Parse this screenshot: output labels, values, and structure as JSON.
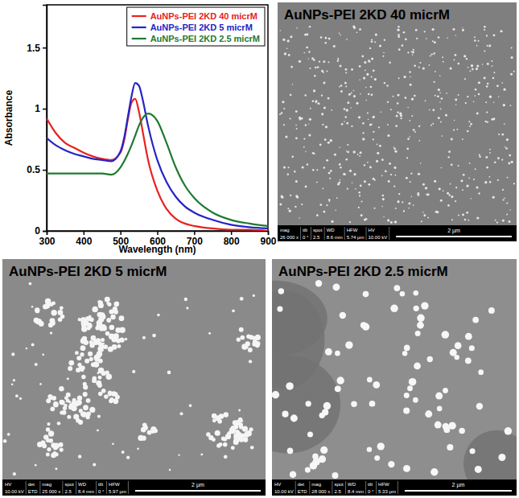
{
  "chart_data": {
    "type": "line",
    "xlabel": "Wavelength (nm)",
    "ylabel": "Absorbance",
    "x": [
      300,
      325,
      350,
      375,
      400,
      425,
      450,
      475,
      500,
      510,
      520,
      530,
      540,
      550,
      560,
      575,
      600,
      625,
      650,
      675,
      700,
      750,
      800,
      850,
      900
    ],
    "series": [
      {
        "name": "AuNPs-PEI 2KD 40 micrM",
        "color": "#e8231f",
        "values": [
          0.92,
          0.8,
          0.72,
          0.68,
          0.64,
          0.61,
          0.59,
          0.58,
          0.64,
          0.74,
          0.91,
          1.05,
          1.08,
          0.98,
          0.82,
          0.58,
          0.33,
          0.18,
          0.1,
          0.06,
          0.04,
          0.02,
          0.01,
          0.01,
          0.0
        ]
      },
      {
        "name": "AuNPs-PEI 2KD 5 micrM",
        "color": "#2424c8",
        "values": [
          0.76,
          0.7,
          0.66,
          0.63,
          0.61,
          0.59,
          0.58,
          0.57,
          0.65,
          0.76,
          0.93,
          1.1,
          1.21,
          1.19,
          1.08,
          0.86,
          0.58,
          0.4,
          0.28,
          0.2,
          0.15,
          0.09,
          0.05,
          0.03,
          0.02
        ]
      },
      {
        "name": "AuNPs-PEI 2KD 2.5 micrM",
        "color": "#1e7a30",
        "values": [
          0.47,
          0.47,
          0.47,
          0.47,
          0.47,
          0.47,
          0.47,
          0.46,
          0.52,
          0.57,
          0.63,
          0.7,
          0.78,
          0.86,
          0.92,
          0.96,
          0.9,
          0.72,
          0.52,
          0.37,
          0.27,
          0.15,
          0.09,
          0.06,
          0.04
        ]
      }
    ],
    "xlim": [
      300,
      900
    ],
    "ylim": [
      0,
      1.85
    ],
    "xticks": [
      300,
      400,
      500,
      600,
      700,
      800,
      900
    ],
    "yticks": [
      0,
      0.5,
      1,
      1.5
    ],
    "legend": "upper right"
  },
  "images": [
    {
      "title": "AuNPs-PEI 2KD 40 micrM",
      "footer_fields": [
        "mag",
        "tilt",
        "spot",
        "WD",
        "HFW",
        "HV"
      ],
      "footer_values": [
        "26 000 x",
        "0 °",
        "2.5",
        "8.6 mm",
        "5.74 µm",
        "10.00 kV"
      ],
      "scale_bar": "2 µm"
    },
    {
      "title": "AuNPs-PEI 2KD 5 micrM",
      "footer_fields": [
        "HV",
        "det",
        "mag",
        "spot",
        "WD",
        "tilt",
        "HFW"
      ],
      "footer_values": [
        "10.00 kV",
        "ETD",
        "25 000 x",
        "2.5",
        "8.4 mm",
        "0 °",
        "5.97 µm"
      ],
      "scale_bar": "2 µm"
    },
    {
      "title": "AuNPs-PEI 2KD 2.5 micrM",
      "footer_fields": [
        "HV",
        "det",
        "mag",
        "spot",
        "WD",
        "tilt",
        "HFW"
      ],
      "footer_values": [
        "10.00 kV",
        "ETD",
        "28 000 x",
        "2.5",
        "8.4 mm",
        "0 °",
        "5.33 µm"
      ],
      "scale_bar": "2 µm"
    }
  ]
}
